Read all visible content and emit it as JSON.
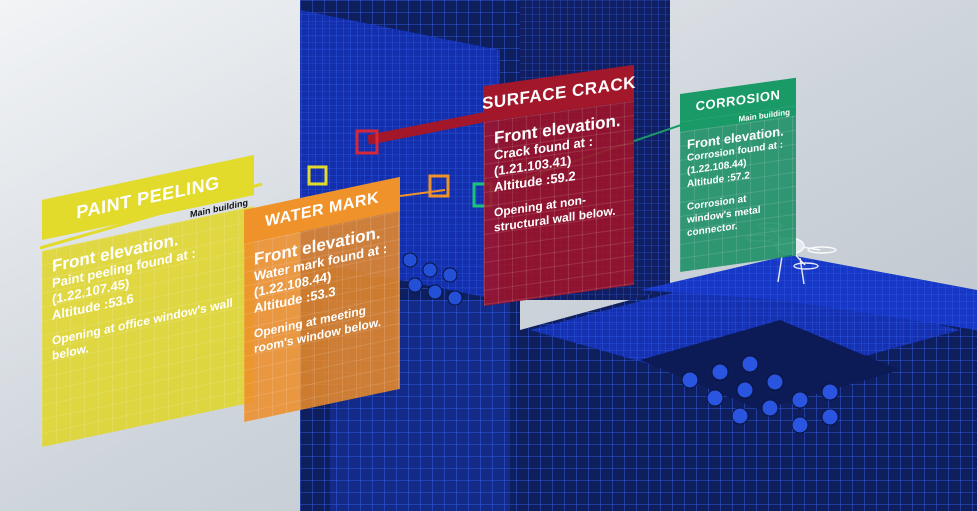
{
  "colors": {
    "building": "#1736c8",
    "building_dark": "#0f1f5e",
    "paint_peeling": "#e3db2c",
    "water_mark": "#f0922a",
    "surface_crack": "#a2172a",
    "corrosion": "#1a9a66"
  },
  "markers": [
    "yellow",
    "red",
    "orange",
    "green"
  ],
  "cards": {
    "paint_peeling": {
      "title": "PAINT PEELING",
      "subtitle": "Main building",
      "heading": "Front elevation.",
      "line1": "Paint peeling found at :",
      "line2": "(1.22.107.45)",
      "line3": "Altitude :53.6",
      "note": "Opening at office window's wall below."
    },
    "water_mark": {
      "title": "WATER MARK",
      "heading": "Front elevation.",
      "line1": "Water mark found at :",
      "line2": "(1.22.108.44)",
      "line3": "Altitude :53.3",
      "note": "Opening at meeting room's window below."
    },
    "surface_crack": {
      "title": "SURFACE CRACK",
      "heading": "Front elevation.",
      "line1": "Crack found at :",
      "line2": "(1.21.103.41)",
      "line3": "Altitude :59.2",
      "note": "Opening at non-structural wall below."
    },
    "corrosion": {
      "title": "CORROSION",
      "subtitle": "Main building",
      "heading": "Front elevation.",
      "line1": "Corrosion found at :",
      "line2": "(1.22.108.44)",
      "line3": "Altitude :57.2",
      "note": "Corrosion at window's metal connector."
    }
  }
}
